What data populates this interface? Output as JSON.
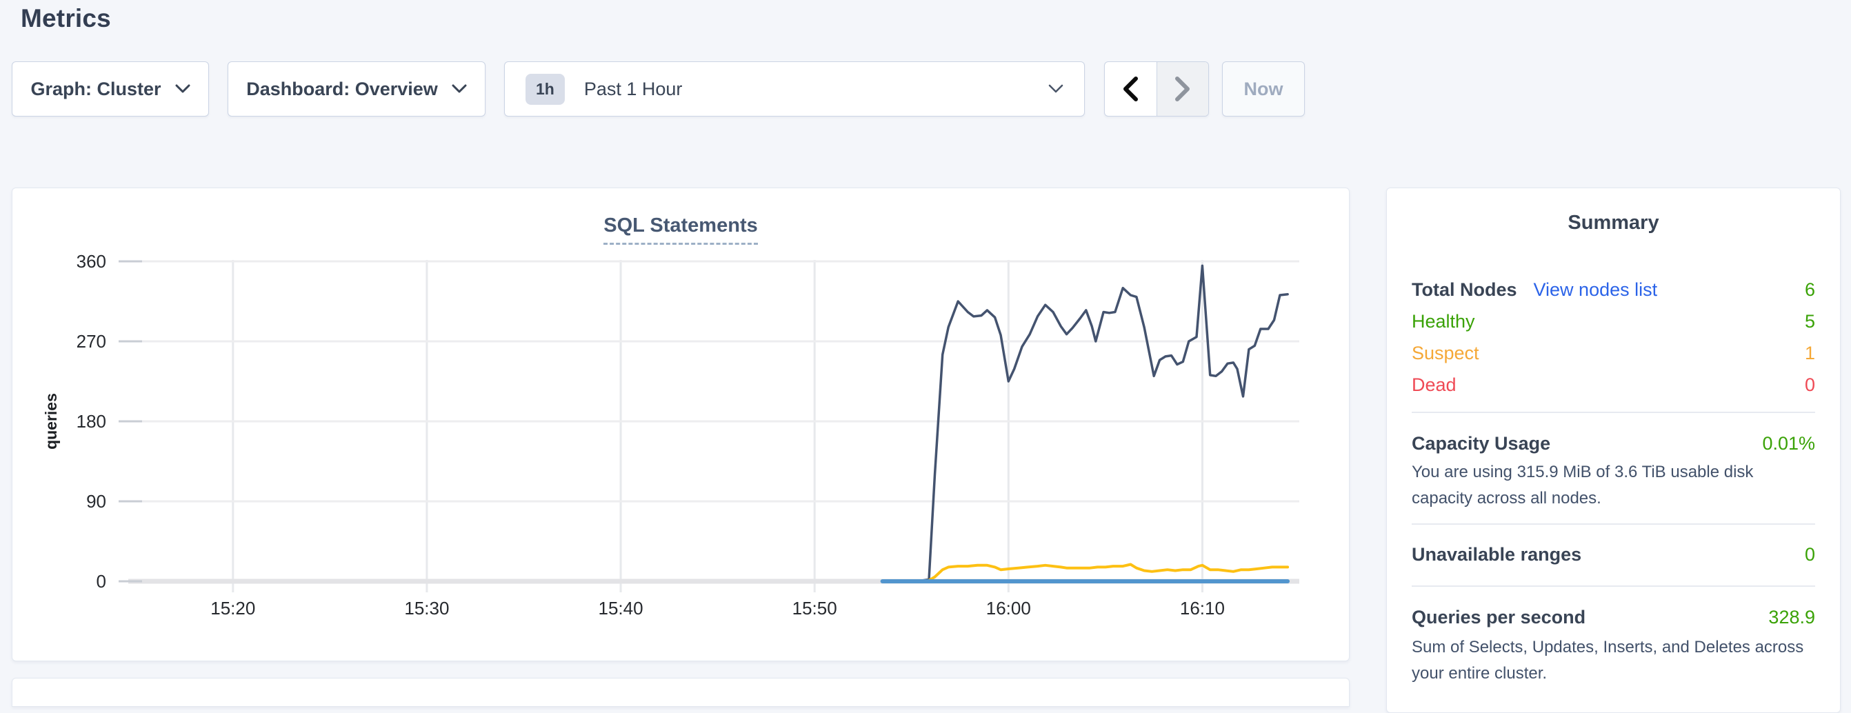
{
  "page": {
    "title": "Metrics",
    "background": "#f4f6fa"
  },
  "toolbar": {
    "graph_dropdown_label": "Graph: Cluster",
    "dashboard_dropdown_label": "Dashboard: Overview",
    "time_window_badge": "1h",
    "time_window_label": "Past 1 Hour",
    "now_label": "Now"
  },
  "chart_data": {
    "type": "line",
    "title": "SQL Statements",
    "xlabel": "",
    "ylabel": "queries",
    "grid": true,
    "legend": "none",
    "ylim": [
      0,
      360
    ],
    "y_ticks": [
      0,
      90,
      180,
      270,
      360
    ],
    "xlim_minutes": [
      14.6,
      75.0
    ],
    "x_ticks": [
      {
        "m": 20,
        "label": "15:20"
      },
      {
        "m": 30,
        "label": "15:30"
      },
      {
        "m": 40,
        "label": "15:40"
      },
      {
        "m": 50,
        "label": "15:50"
      },
      {
        "m": 60,
        "label": "16:00"
      },
      {
        "m": 70,
        "label": "16:10"
      }
    ],
    "x_tick_note": "minutes after 15:00",
    "series": [
      {
        "name": "series-dark-blue-queries",
        "color": "#44536f",
        "width": 3.5,
        "points": [
          [
            55.3,
            0
          ],
          [
            55.9,
            2
          ],
          [
            56.2,
            120
          ],
          [
            56.6,
            255
          ],
          [
            56.9,
            286
          ],
          [
            57.4,
            315
          ],
          [
            57.9,
            303
          ],
          [
            58.2,
            298
          ],
          [
            58.6,
            299
          ],
          [
            58.9,
            305
          ],
          [
            59.3,
            297
          ],
          [
            59.6,
            277
          ],
          [
            60.0,
            225
          ],
          [
            60.3,
            239
          ],
          [
            60.7,
            264
          ],
          [
            61.1,
            278
          ],
          [
            61.5,
            298
          ],
          [
            61.9,
            311
          ],
          [
            62.3,
            303
          ],
          [
            62.7,
            287
          ],
          [
            63.0,
            278
          ],
          [
            63.3,
            285
          ],
          [
            63.7,
            296
          ],
          [
            64.0,
            305
          ],
          [
            64.3,
            287
          ],
          [
            64.5,
            270
          ],
          [
            64.9,
            303
          ],
          [
            65.2,
            302
          ],
          [
            65.5,
            303
          ],
          [
            65.9,
            330
          ],
          [
            66.3,
            322
          ],
          [
            66.6,
            320
          ],
          [
            67.0,
            286
          ],
          [
            67.5,
            231
          ],
          [
            67.8,
            249
          ],
          [
            68.1,
            253
          ],
          [
            68.4,
            254
          ],
          [
            68.7,
            244
          ],
          [
            69.0,
            247
          ],
          [
            69.3,
            270
          ],
          [
            69.7,
            275
          ],
          [
            70.0,
            355
          ],
          [
            70.4,
            232
          ],
          [
            70.7,
            231
          ],
          [
            71.0,
            236
          ],
          [
            71.3,
            245
          ],
          [
            71.6,
            246
          ],
          [
            71.8,
            239
          ],
          [
            72.1,
            208
          ],
          [
            72.4,
            261
          ],
          [
            72.7,
            265
          ],
          [
            73.0,
            284
          ],
          [
            73.4,
            284
          ],
          [
            73.7,
            294
          ],
          [
            74.0,
            322
          ],
          [
            74.4,
            323
          ]
        ]
      },
      {
        "name": "series-yellow",
        "color": "#fdc013",
        "width": 4,
        "points": [
          [
            55.3,
            0
          ],
          [
            55.9,
            1
          ],
          [
            56.2,
            5
          ],
          [
            56.6,
            13
          ],
          [
            56.9,
            16
          ],
          [
            57.4,
            17
          ],
          [
            57.9,
            17
          ],
          [
            58.4,
            18
          ],
          [
            58.9,
            18
          ],
          [
            59.3,
            16
          ],
          [
            59.6,
            13
          ],
          [
            60.0,
            14
          ],
          [
            60.5,
            15
          ],
          [
            61.0,
            16
          ],
          [
            61.5,
            17
          ],
          [
            61.9,
            18
          ],
          [
            62.3,
            17
          ],
          [
            62.7,
            16
          ],
          [
            63.0,
            15
          ],
          [
            63.4,
            15
          ],
          [
            63.8,
            15
          ],
          [
            64.2,
            15
          ],
          [
            64.6,
            16
          ],
          [
            65.0,
            16
          ],
          [
            65.4,
            17
          ],
          [
            65.9,
            17
          ],
          [
            66.3,
            19
          ],
          [
            66.6,
            15
          ],
          [
            67.0,
            12
          ],
          [
            67.4,
            11
          ],
          [
            67.8,
            12
          ],
          [
            68.2,
            13
          ],
          [
            68.6,
            12
          ],
          [
            69.0,
            13
          ],
          [
            69.4,
            13
          ],
          [
            69.8,
            17
          ],
          [
            70.0,
            18
          ],
          [
            70.4,
            13
          ],
          [
            70.8,
            13
          ],
          [
            71.2,
            12
          ],
          [
            71.6,
            11
          ],
          [
            72.0,
            13
          ],
          [
            72.4,
            13
          ],
          [
            72.8,
            14
          ],
          [
            73.2,
            15
          ],
          [
            73.6,
            16
          ],
          [
            74.0,
            16
          ],
          [
            74.4,
            16
          ]
        ]
      },
      {
        "name": "series-light-blue-baseline",
        "color": "#5295ce",
        "width": 6,
        "points": [
          [
            53.5,
            0
          ],
          [
            74.4,
            0
          ]
        ]
      }
    ]
  },
  "summary": {
    "title": "Summary",
    "total_nodes": {
      "label": "Total Nodes",
      "link": "View nodes list",
      "value": "6"
    },
    "healthy": {
      "label": "Healthy",
      "value": "5"
    },
    "suspect": {
      "label": "Suspect",
      "value": "1"
    },
    "dead": {
      "label": "Dead",
      "value": "0"
    },
    "capacity": {
      "label": "Capacity Usage",
      "value": "0.01%",
      "description": "You are using 315.9 MiB of 3.6 TiB usable disk capacity across all nodes."
    },
    "unavailable_ranges": {
      "label": "Unavailable ranges",
      "value": "0"
    },
    "qps": {
      "label": "Queries per second",
      "value": "328.9",
      "description": "Sum of Selects, Updates, Inserts, and Deletes across your entire cluster."
    },
    "colors": {
      "accent_green": "#3aa207",
      "warn_orange": "#f5a837",
      "danger_red": "#ef4a55",
      "link_blue": "#2b63e8"
    }
  }
}
